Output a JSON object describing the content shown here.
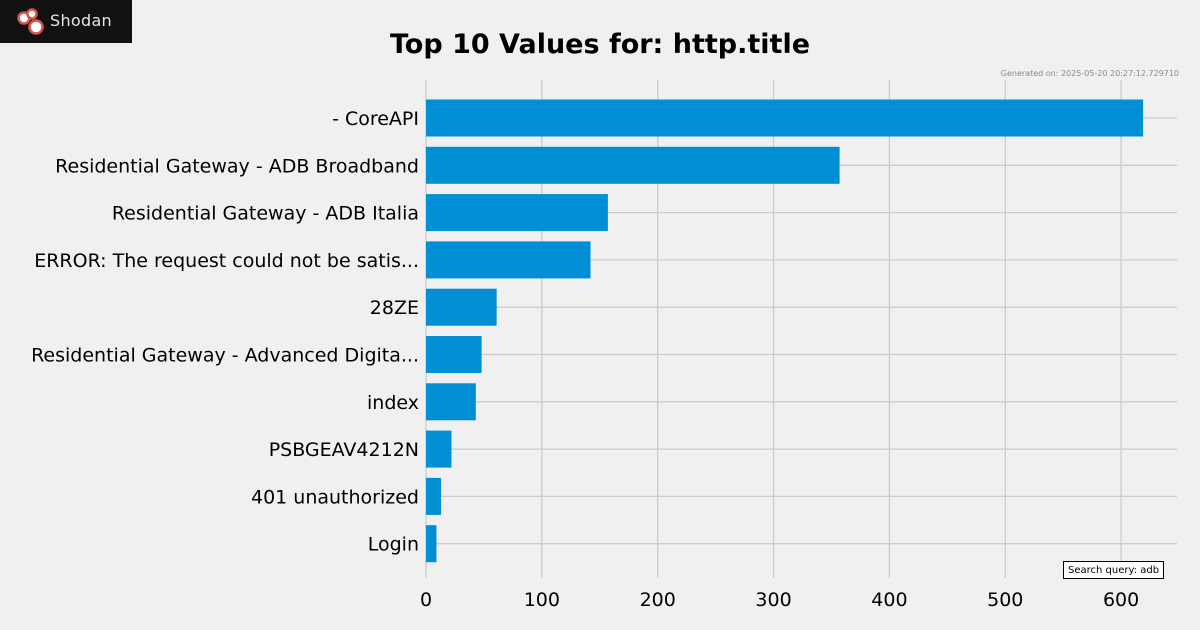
{
  "header": {
    "logo_text": "Shodan",
    "logo_icon": "shodan-logo-icon"
  },
  "meta": {
    "generated": "Generated on: 2025-05-20 20:27:12.729710",
    "search_query": "Search query: adb"
  },
  "colors": {
    "bar": "#008fd5",
    "background": "#f0f0f0",
    "grid": "#cbcbcb"
  },
  "chart_data": {
    "type": "bar",
    "orientation": "horizontal",
    "title": "Top 10 Values for: http.title",
    "xlabel": "",
    "ylabel": "",
    "categories": [
      "- CoreAPI",
      "Residential Gateway - ADB Broadband",
      "Residential Gateway - ADB Italia",
      "ERROR: The request could not be satis...",
      "28ZE",
      "Residential Gateway - Advanced Digita...",
      "index",
      "PSBGEAV4212N",
      "401 unauthorized",
      "Login"
    ],
    "values": [
      619,
      357,
      157,
      142,
      61,
      48,
      43,
      22,
      13,
      9
    ],
    "xlim": [
      0,
      650
    ],
    "xticks": [
      0,
      100,
      200,
      300,
      400,
      500,
      600
    ],
    "grid": true,
    "legend": "none"
  }
}
